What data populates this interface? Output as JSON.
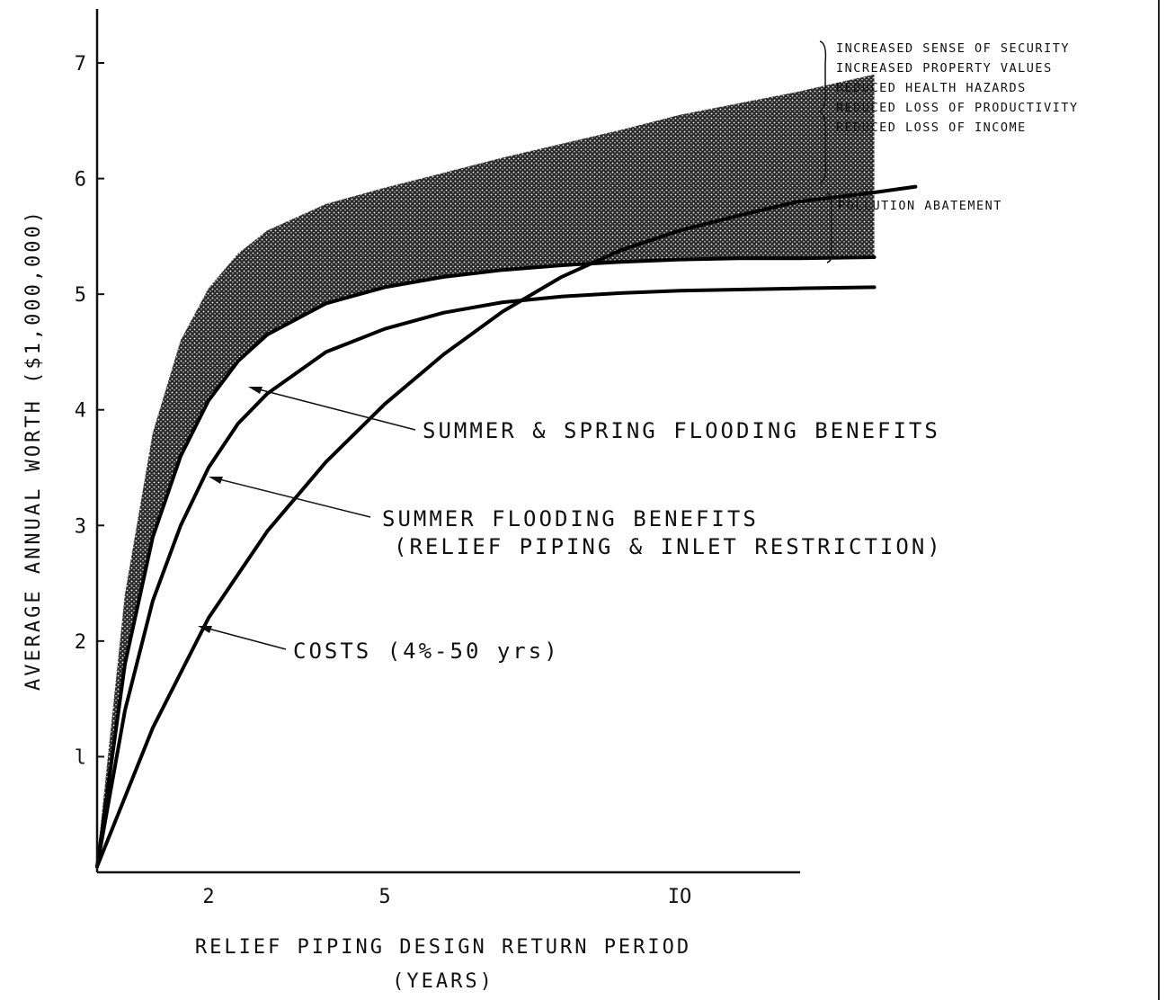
{
  "chart_data": {
    "type": "line",
    "xlabel": "RELIEF PIPING DESIGN RETURN PERIOD",
    "xlabel_unit": "(YEARS)",
    "ylabel": "AVERAGE ANNUAL WORTH ($1,000,000)",
    "x_ticks": [
      {
        "value": 2,
        "label": "2"
      },
      {
        "value": 5,
        "label": "5"
      },
      {
        "value": 10,
        "label": "IO"
      }
    ],
    "y_ticks": [
      {
        "value": 1,
        "label": "l"
      },
      {
        "value": 2,
        "label": "2"
      },
      {
        "value": 3,
        "label": "3"
      },
      {
        "value": 4,
        "label": "4"
      },
      {
        "value": 5,
        "label": "5"
      },
      {
        "value": 6,
        "label": "6"
      },
      {
        "value": 7,
        "label": "7"
      }
    ],
    "xlim": [
      0,
      15
    ],
    "ylim": [
      0,
      7.5
    ],
    "grid": false,
    "series": [
      {
        "name": "SUMMER & SPRING FLOODING BENEFITS",
        "x": [
          0,
          0.5,
          1,
          1.5,
          2,
          2.5,
          3,
          4,
          5,
          6,
          7,
          8,
          9,
          10,
          11,
          12,
          13.3
        ],
        "y": [
          0.05,
          1.8,
          2.9,
          3.6,
          4.08,
          4.42,
          4.65,
          4.92,
          5.06,
          5.15,
          5.21,
          5.25,
          5.28,
          5.3,
          5.31,
          5.31,
          5.32
        ]
      },
      {
        "name": "SUMMER FLOODING BENEFITS (RELIEF PIPING & INLET RESTRICTION)",
        "x": [
          0,
          0.5,
          1,
          1.5,
          2,
          2.5,
          3,
          4,
          5,
          6,
          7,
          8,
          9,
          10,
          11,
          12,
          13.3
        ],
        "y": [
          0.05,
          1.4,
          2.35,
          3.0,
          3.5,
          3.88,
          4.14,
          4.5,
          4.7,
          4.84,
          4.93,
          4.98,
          5.01,
          5.03,
          5.04,
          5.05,
          5.06
        ]
      },
      {
        "name": "COSTS (4%-50 yrs)",
        "x": [
          0,
          1,
          2,
          3,
          4,
          5,
          6,
          7,
          8,
          9,
          10,
          11,
          12,
          13.3,
          14
        ],
        "y": [
          0.05,
          1.25,
          2.2,
          2.95,
          3.55,
          4.05,
          4.48,
          4.85,
          5.15,
          5.38,
          5.55,
          5.68,
          5.8,
          5.88,
          5.93
        ]
      }
    ],
    "other_benefits_band": {
      "lower_series": "SUMMER & SPRING FLOODING BENEFITS",
      "upper": {
        "x": [
          0,
          0.5,
          1,
          1.5,
          2,
          2.5,
          3,
          4,
          5,
          6,
          7,
          8,
          9,
          10,
          11,
          12,
          13.3
        ],
        "y": [
          0.1,
          2.4,
          3.8,
          4.6,
          5.05,
          5.35,
          5.55,
          5.78,
          5.92,
          6.05,
          6.18,
          6.3,
          6.42,
          6.55,
          6.65,
          6.75,
          6.9
        ]
      }
    },
    "annotations": [
      {
        "key": "summer_spring",
        "text": "SUMMER & SPRING FLOODING BENEFITS"
      },
      {
        "key": "summer_line1",
        "text": "SUMMER FLOODING BENEFITS"
      },
      {
        "key": "summer_line2",
        "text": "(RELIEF PIPING & INLET RESTRICTION)"
      },
      {
        "key": "costs",
        "text": "COSTS (4%-50 yrs)"
      }
    ],
    "bracket_labels": {
      "upper": [
        "INCREASED SENSE OF SECURITY",
        "INCREASED PROPERTY VALUES",
        "REDUCED HEALTH HAZARDS",
        "REDUCED LOSS OF PRODUCTIVITY",
        "REDUCED LOSS OF INCOME"
      ],
      "lower": [
        "POLLUTION ABATEMENT"
      ]
    }
  }
}
